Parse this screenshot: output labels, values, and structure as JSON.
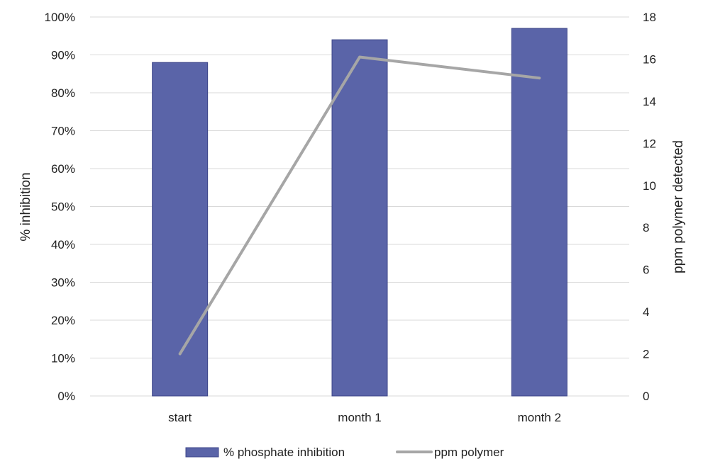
{
  "chart_data": {
    "type": "bar",
    "categories": [
      "start",
      "month 1",
      "month 2"
    ],
    "series": [
      {
        "name": "% phosphate inhibition",
        "kind": "bar",
        "axis": "left",
        "values": [
          0.88,
          0.94,
          0.97
        ],
        "color": "#5a64a8"
      },
      {
        "name": "ppm polymer",
        "kind": "line",
        "axis": "right",
        "values": [
          2,
          16.1,
          15.1
        ],
        "color": "#a6a6a6"
      }
    ],
    "left_axis": {
      "label": "% inhibition",
      "range": [
        0,
        1
      ],
      "ticks": [
        0,
        0.1,
        0.2,
        0.3,
        0.4,
        0.5,
        0.6,
        0.7,
        0.8,
        0.9,
        1.0
      ],
      "tick_labels": [
        "0%",
        "10%",
        "20%",
        "30%",
        "40%",
        "50%",
        "60%",
        "70%",
        "80%",
        "90%",
        "100%"
      ]
    },
    "right_axis": {
      "label": "ppm polymer detected",
      "range": [
        0,
        18
      ],
      "ticks": [
        0,
        2,
        4,
        6,
        8,
        10,
        12,
        14,
        16,
        18
      ],
      "tick_labels": [
        "0",
        "2",
        "4",
        "6",
        "8",
        "10",
        "12",
        "14",
        "16",
        "18"
      ]
    },
    "xlabel": "",
    "grid": "horizontal",
    "legend_position": "bottom",
    "colors": {
      "bar": "#5a64a8",
      "bar_edge": "#3c4588",
      "line": "#a6a6a6",
      "grid": "#d9d9d9"
    }
  }
}
